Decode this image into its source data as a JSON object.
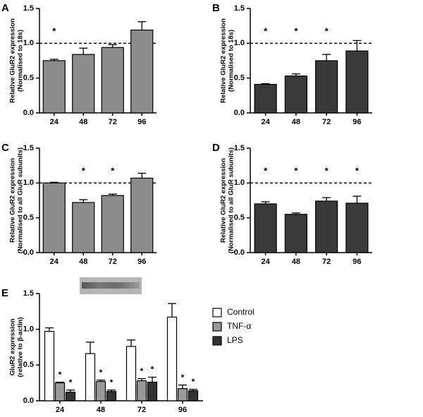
{
  "chart_data": [
    {
      "type": "bar",
      "panel_label": "A",
      "ylabel": [
        "Relative GluR2 expression",
        "(Normalised to 18s)"
      ],
      "categories": [
        "24",
        "48",
        "72",
        "96"
      ],
      "values": [
        0.75,
        0.84,
        0.94,
        1.19
      ],
      "errors": [
        0.02,
        0.09,
        0.04,
        0.12
      ],
      "significance": [
        "*",
        null,
        null,
        null
      ],
      "color": "#8c8c8c",
      "reference_line": 1.0,
      "ylim": [
        0,
        1.5
      ],
      "yticks": [
        {
          "value": 0,
          "label": "0.0"
        },
        {
          "value": 0.5,
          "label": "0.5"
        },
        {
          "value": 1,
          "label": "1.0"
        },
        {
          "value": 1.5,
          "label": "1.5"
        }
      ]
    },
    {
      "type": "bar",
      "panel_label": "B",
      "ylabel": [
        "Relative GluR2 expression",
        "(Normalised to 18s)"
      ],
      "categories": [
        "24",
        "48",
        "72",
        "96"
      ],
      "values": [
        0.41,
        0.53,
        0.75,
        0.89
      ],
      "errors": [
        0.01,
        0.03,
        0.09,
        0.15
      ],
      "significance": [
        "*",
        "*",
        "*",
        null
      ],
      "color": "#3a3a3a",
      "reference_line": 1.0,
      "ylim": [
        0,
        1.5
      ],
      "yticks": [
        {
          "value": 0,
          "label": "0.0"
        },
        {
          "value": 0.5,
          "label": "0.5"
        },
        {
          "value": 1,
          "label": "1.0"
        },
        {
          "value": 1.5,
          "label": "1.5"
        }
      ]
    },
    {
      "type": "bar",
      "panel_label": "C",
      "ylabel": [
        "Relative GluR2 expression",
        "(Normalised to all GluR subunits)"
      ],
      "categories": [
        "24",
        "48",
        "72",
        "96"
      ],
      "values": [
        1.0,
        0.72,
        0.82,
        1.07
      ],
      "errors": [
        0.01,
        0.04,
        0.02,
        0.07
      ],
      "significance": [
        null,
        "*",
        "*",
        null
      ],
      "color": "#8c8c8c",
      "reference_line": 1.0,
      "ylim": [
        0,
        1.5
      ],
      "yticks": [
        {
          "value": 0,
          "label": "0.0"
        },
        {
          "value": 0.5,
          "label": "0.5"
        },
        {
          "value": 1,
          "label": "1.0"
        },
        {
          "value": 1.5,
          "label": "1.5"
        }
      ]
    },
    {
      "type": "bar",
      "panel_label": "D",
      "ylabel": [
        "Relative GluR2 expression",
        "(Normalised to all GluR subunits)"
      ],
      "categories": [
        "24",
        "48",
        "72",
        "96"
      ],
      "values": [
        0.7,
        0.55,
        0.74,
        0.71
      ],
      "errors": [
        0.03,
        0.02,
        0.05,
        0.1
      ],
      "significance": [
        "*",
        "*",
        "*",
        "*"
      ],
      "color": "#3a3a3a",
      "reference_line": 1.0,
      "ylim": [
        0,
        1.5
      ],
      "yticks": [
        {
          "value": 0,
          "label": "0.0"
        },
        {
          "value": 0.5,
          "label": "0.5"
        },
        {
          "value": 1,
          "label": "1.0"
        },
        {
          "value": 1.5,
          "label": "1.5"
        }
      ]
    },
    {
      "type": "grouped_bar",
      "panel_label": "E",
      "ylabel": [
        "GluR2 expression",
        "(relative to β-actin)"
      ],
      "categories": [
        "24",
        "48",
        "72",
        "96"
      ],
      "series": [
        {
          "name": "Control",
          "color": "#ffffff",
          "values": [
            0.97,
            0.66,
            0.76,
            1.17
          ],
          "errors": [
            0.05,
            0.16,
            0.09,
            0.19
          ],
          "significance": [
            null,
            null,
            null,
            null
          ]
        },
        {
          "name": "TNF-α",
          "color": "#999999",
          "values": [
            0.25,
            0.27,
            0.28,
            0.17
          ],
          "errors": [
            0.01,
            0.02,
            0.03,
            0.05
          ],
          "significance": [
            "*",
            "*",
            "*",
            "*"
          ]
        },
        {
          "name": "LPS",
          "color": "#333333",
          "values": [
            0.12,
            0.13,
            0.26,
            0.14
          ],
          "errors": [
            0.03,
            0.02,
            0.07,
            0.02
          ],
          "significance": [
            "*",
            "*",
            "*",
            "*"
          ]
        }
      ],
      "ylim": [
        0,
        1.5
      ],
      "yticks": [
        {
          "value": 0,
          "label": "0.0"
        },
        {
          "value": 0.5,
          "label": "0.5"
        },
        {
          "value": 1,
          "label": "1.0"
        },
        {
          "value": 1.5,
          "label": "1.5"
        }
      ]
    }
  ]
}
